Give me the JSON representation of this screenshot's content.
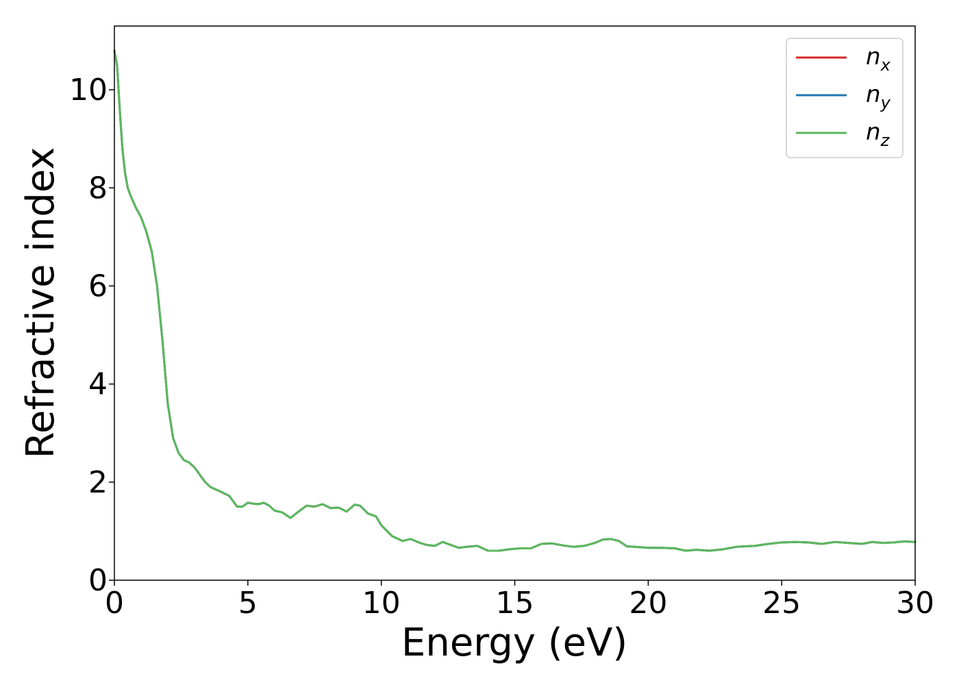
{
  "chart_data": {
    "type": "line",
    "title": "",
    "xlabel": "Energy (eV)",
    "ylabel": "Refractive index",
    "xlim": [
      0,
      30
    ],
    "ylim": [
      0,
      11.3
    ],
    "xticks": [
      0,
      5,
      10,
      15,
      20,
      25,
      30
    ],
    "yticks": [
      0,
      2,
      4,
      6,
      8,
      10
    ],
    "grid": false,
    "legend_position": "top-right",
    "series": [
      {
        "name": "n_x",
        "color": "#d62728",
        "x": [
          0,
          0.1,
          0.2,
          0.3,
          0.4,
          0.5,
          0.6,
          0.8,
          1.0,
          1.2,
          1.4,
          1.6,
          1.8,
          2.0,
          2.2,
          2.4,
          2.6,
          2.8,
          3.0,
          3.2,
          3.4,
          3.6,
          3.8,
          4.0,
          4.3,
          4.6,
          4.8,
          5.0,
          5.2,
          5.4,
          5.6,
          5.8,
          6.0,
          6.3,
          6.6,
          6.9,
          7.2,
          7.5,
          7.8,
          8.1,
          8.4,
          8.7,
          9.0,
          9.2,
          9.5,
          9.8,
          10.0,
          10.4,
          10.8,
          11.1,
          11.4,
          11.7,
          12.0,
          12.3,
          12.6,
          12.9,
          13.2,
          13.6,
          14.0,
          14.4,
          14.8,
          15.2,
          15.6,
          16.0,
          16.4,
          16.8,
          17.2,
          17.6,
          18.0,
          18.3,
          18.6,
          18.9,
          19.2,
          19.5,
          20.0,
          20.5,
          21.0,
          21.4,
          21.8,
          22.3,
          22.8,
          23.3,
          24.0,
          24.5,
          25.0,
          25.5,
          26.0,
          26.5,
          27.0,
          27.5,
          28.0,
          28.4,
          28.8,
          29.2,
          29.6,
          30.0
        ],
        "y": [
          10.8,
          10.5,
          9.6,
          8.8,
          8.3,
          8.0,
          7.85,
          7.6,
          7.4,
          7.1,
          6.7,
          6.0,
          4.9,
          3.6,
          2.9,
          2.6,
          2.45,
          2.4,
          2.3,
          2.15,
          2.0,
          1.9,
          1.85,
          1.8,
          1.72,
          1.5,
          1.5,
          1.58,
          1.56,
          1.55,
          1.58,
          1.52,
          1.42,
          1.38,
          1.27,
          1.4,
          1.52,
          1.5,
          1.55,
          1.47,
          1.48,
          1.4,
          1.54,
          1.52,
          1.36,
          1.3,
          1.12,
          0.9,
          0.8,
          0.84,
          0.77,
          0.72,
          0.7,
          0.78,
          0.72,
          0.66,
          0.68,
          0.7,
          0.6,
          0.6,
          0.63,
          0.65,
          0.65,
          0.74,
          0.75,
          0.71,
          0.68,
          0.7,
          0.76,
          0.83,
          0.84,
          0.8,
          0.69,
          0.68,
          0.66,
          0.66,
          0.65,
          0.6,
          0.62,
          0.6,
          0.63,
          0.68,
          0.7,
          0.74,
          0.77,
          0.78,
          0.77,
          0.74,
          0.78,
          0.76,
          0.74,
          0.78,
          0.76,
          0.77,
          0.79,
          0.78
        ]
      },
      {
        "name": "n_y",
        "color": "#1f77b4",
        "x": [
          0,
          0.1,
          0.2,
          0.3,
          0.4,
          0.5,
          0.6,
          0.8,
          1.0,
          1.2,
          1.4,
          1.6,
          1.8,
          2.0,
          2.2,
          2.4,
          2.6,
          2.8,
          3.0,
          3.2,
          3.4,
          3.6,
          3.8,
          4.0,
          4.3,
          4.6,
          4.8,
          5.0,
          5.2,
          5.4,
          5.6,
          5.8,
          6.0,
          6.3,
          6.6,
          6.9,
          7.2,
          7.5,
          7.8,
          8.1,
          8.4,
          8.7,
          9.0,
          9.2,
          9.5,
          9.8,
          10.0,
          10.4,
          10.8,
          11.1,
          11.4,
          11.7,
          12.0,
          12.3,
          12.6,
          12.9,
          13.2,
          13.6,
          14.0,
          14.4,
          14.8,
          15.2,
          15.6,
          16.0,
          16.4,
          16.8,
          17.2,
          17.6,
          18.0,
          18.3,
          18.6,
          18.9,
          19.2,
          19.5,
          20.0,
          20.5,
          21.0,
          21.4,
          21.8,
          22.3,
          22.8,
          23.3,
          24.0,
          24.5,
          25.0,
          25.5,
          26.0,
          26.5,
          27.0,
          27.5,
          28.0,
          28.4,
          28.8,
          29.2,
          29.6,
          30.0
        ],
        "y": [
          10.8,
          10.5,
          9.6,
          8.8,
          8.3,
          8.0,
          7.85,
          7.6,
          7.4,
          7.1,
          6.7,
          6.0,
          4.9,
          3.6,
          2.9,
          2.6,
          2.45,
          2.4,
          2.3,
          2.15,
          2.0,
          1.9,
          1.85,
          1.8,
          1.72,
          1.5,
          1.5,
          1.58,
          1.56,
          1.55,
          1.58,
          1.52,
          1.42,
          1.38,
          1.27,
          1.4,
          1.52,
          1.5,
          1.55,
          1.47,
          1.48,
          1.4,
          1.54,
          1.52,
          1.36,
          1.3,
          1.12,
          0.9,
          0.8,
          0.84,
          0.77,
          0.72,
          0.7,
          0.78,
          0.72,
          0.66,
          0.68,
          0.7,
          0.6,
          0.6,
          0.63,
          0.65,
          0.65,
          0.74,
          0.75,
          0.71,
          0.68,
          0.7,
          0.76,
          0.83,
          0.84,
          0.8,
          0.69,
          0.68,
          0.66,
          0.66,
          0.65,
          0.6,
          0.62,
          0.6,
          0.63,
          0.68,
          0.7,
          0.74,
          0.77,
          0.78,
          0.77,
          0.74,
          0.78,
          0.76,
          0.74,
          0.78,
          0.76,
          0.77,
          0.79,
          0.78
        ]
      },
      {
        "name": "n_z",
        "color": "#5cb85c",
        "x": [
          0,
          0.1,
          0.2,
          0.3,
          0.4,
          0.5,
          0.6,
          0.8,
          1.0,
          1.2,
          1.4,
          1.6,
          1.8,
          2.0,
          2.2,
          2.4,
          2.6,
          2.8,
          3.0,
          3.2,
          3.4,
          3.6,
          3.8,
          4.0,
          4.3,
          4.6,
          4.8,
          5.0,
          5.2,
          5.4,
          5.6,
          5.8,
          6.0,
          6.3,
          6.6,
          6.9,
          7.2,
          7.5,
          7.8,
          8.1,
          8.4,
          8.7,
          9.0,
          9.2,
          9.5,
          9.8,
          10.0,
          10.4,
          10.8,
          11.1,
          11.4,
          11.7,
          12.0,
          12.3,
          12.6,
          12.9,
          13.2,
          13.6,
          14.0,
          14.4,
          14.8,
          15.2,
          15.6,
          16.0,
          16.4,
          16.8,
          17.2,
          17.6,
          18.0,
          18.3,
          18.6,
          18.9,
          19.2,
          19.5,
          20.0,
          20.5,
          21.0,
          21.4,
          21.8,
          22.3,
          22.8,
          23.3,
          24.0,
          24.5,
          25.0,
          25.5,
          26.0,
          26.5,
          27.0,
          27.5,
          28.0,
          28.4,
          28.8,
          29.2,
          29.6,
          30.0
        ],
        "y": [
          10.8,
          10.5,
          9.6,
          8.8,
          8.3,
          8.0,
          7.85,
          7.6,
          7.4,
          7.1,
          6.7,
          6.0,
          4.9,
          3.6,
          2.9,
          2.6,
          2.45,
          2.4,
          2.3,
          2.15,
          2.0,
          1.9,
          1.85,
          1.8,
          1.72,
          1.5,
          1.5,
          1.58,
          1.56,
          1.55,
          1.58,
          1.52,
          1.42,
          1.38,
          1.27,
          1.4,
          1.52,
          1.5,
          1.55,
          1.47,
          1.48,
          1.4,
          1.54,
          1.52,
          1.36,
          1.3,
          1.12,
          0.9,
          0.8,
          0.84,
          0.77,
          0.72,
          0.7,
          0.78,
          0.72,
          0.66,
          0.68,
          0.7,
          0.6,
          0.6,
          0.63,
          0.65,
          0.65,
          0.74,
          0.75,
          0.71,
          0.68,
          0.7,
          0.76,
          0.83,
          0.84,
          0.8,
          0.69,
          0.68,
          0.66,
          0.66,
          0.65,
          0.6,
          0.62,
          0.6,
          0.63,
          0.68,
          0.7,
          0.74,
          0.77,
          0.78,
          0.77,
          0.74,
          0.78,
          0.76,
          0.74,
          0.78,
          0.76,
          0.77,
          0.79,
          0.78
        ]
      }
    ],
    "legend": [
      {
        "base": "n",
        "sub": "x",
        "color": "#d62728"
      },
      {
        "base": "n",
        "sub": "y",
        "color": "#1f77b4"
      },
      {
        "base": "n",
        "sub": "z",
        "color": "#5cb85c"
      }
    ]
  }
}
